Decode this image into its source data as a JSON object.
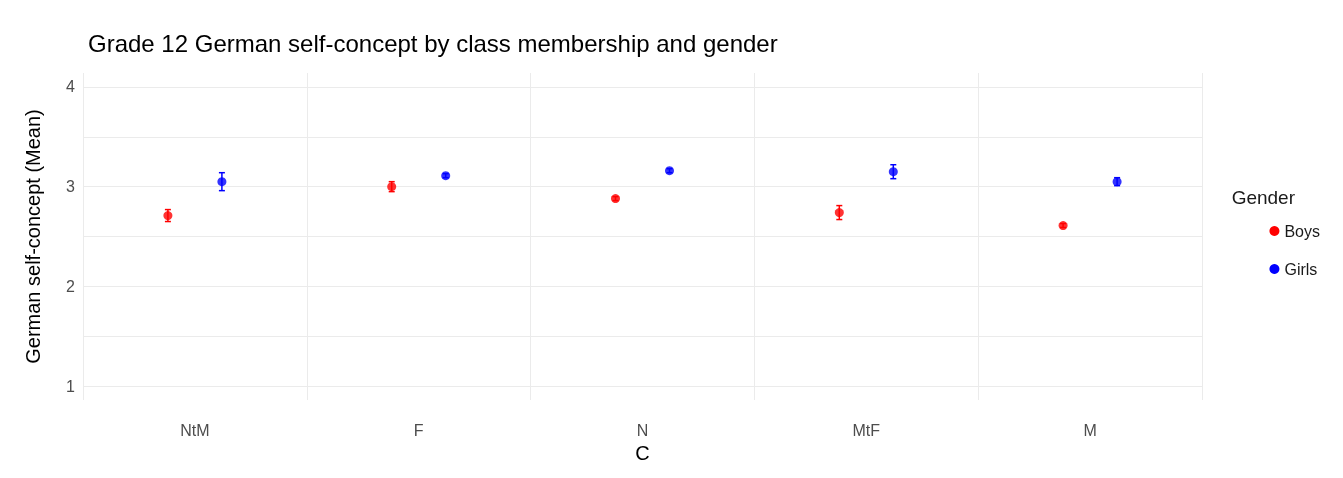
{
  "chart_data": {
    "type": "scatter",
    "title": "Grade 12 German self-concept by class membership and gender",
    "xlabel": "C",
    "ylabel": "German self-concept (Mean)",
    "legend_title": "Gender",
    "categories": [
      "NtM",
      "F",
      "N",
      "MtF",
      "M"
    ],
    "series": [
      {
        "name": "Boys",
        "color": "#ff0000",
        "values": [
          2.71,
          3.0,
          2.88,
          2.74,
          2.61
        ],
        "errors": [
          0.06,
          0.05,
          0.02,
          0.07,
          0.02
        ]
      },
      {
        "name": "Girls",
        "color": "#0000ff",
        "values": [
          3.05,
          3.11,
          3.16,
          3.15,
          3.05
        ],
        "errors": [
          0.09,
          0.02,
          0.02,
          0.07,
          0.04
        ]
      }
    ],
    "ylim": [
      0.86,
      4.14
    ],
    "yticks": [
      1,
      {
        "value": 1.5,
        "label": null
      },
      2,
      {
        "value": 2.5,
        "label": null
      },
      3,
      {
        "value": 3.5,
        "label": null
      },
      4
    ],
    "grid": true,
    "legend": "right",
    "marker": "circle"
  }
}
